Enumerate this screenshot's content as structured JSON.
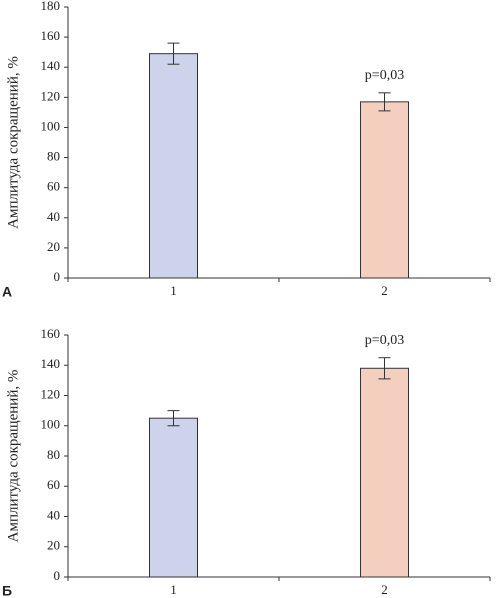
{
  "chart_data": [
    {
      "type": "bar",
      "panel": "А",
      "y_label": "Амплитуда сокращений, %",
      "annotation": "p=0,03",
      "categories": [
        "1",
        "2"
      ],
      "values": [
        149,
        117
      ],
      "errors": [
        7,
        6
      ],
      "colors": [
        "#ccd3ea",
        "#f4cfc0"
      ],
      "ylim": [
        0,
        180
      ],
      "yticks": [
        0,
        20,
        40,
        60,
        80,
        100,
        120,
        140,
        160,
        180
      ]
    },
    {
      "type": "bar",
      "panel": "Б",
      "y_label": "Амплитуда сокращений, %",
      "annotation": "p=0,03",
      "categories": [
        "1",
        "2"
      ],
      "values": [
        105,
        138
      ],
      "errors": [
        5,
        7
      ],
      "colors": [
        "#ccd3ea",
        "#f4cfc0"
      ],
      "ylim": [
        0,
        160
      ],
      "yticks": [
        0,
        20,
        40,
        60,
        80,
        100,
        120,
        140,
        160
      ]
    }
  ]
}
